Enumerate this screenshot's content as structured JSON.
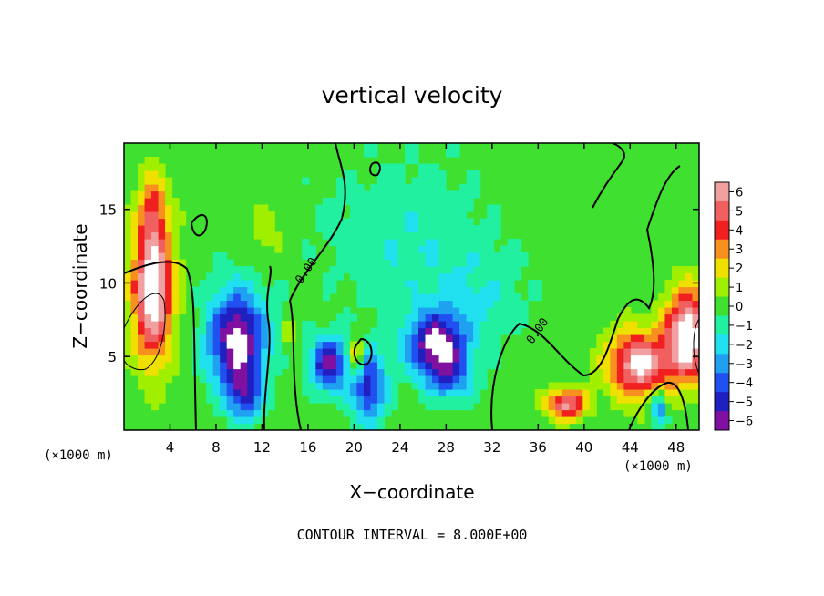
{
  "chart_data": {
    "type": "heatmap",
    "title": "vertical velocity",
    "xlabel": "X−coordinate",
    "ylabel": "Z−coordinate",
    "x_unit_left": "(×1000 m)",
    "x_unit_right": "(×1000 m)",
    "footer": "CONTOUR INTERVAL = 8.000E+00",
    "xlim": [
      0,
      50
    ],
    "ylim": [
      0,
      19.5
    ],
    "x_ticks": [
      {
        "value": 4,
        "label": "4"
      },
      {
        "value": 8,
        "label": "8"
      },
      {
        "value": 12,
        "label": "12"
      },
      {
        "value": 16,
        "label": "16"
      },
      {
        "value": 20,
        "label": "20"
      },
      {
        "value": 24,
        "label": "24"
      },
      {
        "value": 28,
        "label": "28"
      },
      {
        "value": 32,
        "label": "32"
      },
      {
        "value": 36,
        "label": "36"
      },
      {
        "value": 40,
        "label": "40"
      },
      {
        "value": 44,
        "label": "44"
      },
      {
        "value": 48,
        "label": "48"
      }
    ],
    "y_ticks": [
      {
        "value": 5,
        "label": "5"
      },
      {
        "value": 10,
        "label": "10"
      },
      {
        "value": 15,
        "label": "15"
      }
    ],
    "contour_labels": [
      {
        "x": 15.4,
        "y": 9.9,
        "text": "0.00"
      },
      {
        "x": 35.5,
        "y": 5.8,
        "text": "0.00"
      }
    ],
    "colorbar": {
      "levels": [
        {
          "value": 6,
          "label": "6",
          "color": "#f0a0a0"
        },
        {
          "value": 5,
          "label": "5",
          "color": "#f06060"
        },
        {
          "value": 4,
          "label": "4",
          "color": "#f02020"
        },
        {
          "value": 3,
          "label": "3",
          "color": "#f89020"
        },
        {
          "value": 2,
          "label": "2",
          "color": "#f0e000"
        },
        {
          "value": 1,
          "label": "1",
          "color": "#a0ee00"
        },
        {
          "value": 0,
          "label": "0",
          "color": "#40e030"
        },
        {
          "value": -1,
          "label": "−1",
          "color": "#20f0a0"
        },
        {
          "value": -2,
          "label": "−2",
          "color": "#20e0f0"
        },
        {
          "value": -3,
          "label": "−3",
          "color": "#20a0f0"
        },
        {
          "value": -4,
          "label": "−4",
          "color": "#2050f0"
        },
        {
          "value": -5,
          "label": "−5",
          "color": "#2020c0"
        },
        {
          "value": -6,
          "label": "−6",
          "color": "#8010a0"
        }
      ]
    },
    "features": [
      {
        "kind": "updraft",
        "x": 2.5,
        "z": 9.5,
        "sx": 1.7,
        "sz": 4.5,
        "amp": 8
      },
      {
        "kind": "updraft",
        "x": 2.5,
        "z": 15.0,
        "sx": 1.2,
        "sz": 2.5,
        "amp": 3
      },
      {
        "kind": "updraft",
        "x": 49.0,
        "z": 6.5,
        "sx": 1.8,
        "sz": 3.0,
        "amp": 8
      },
      {
        "kind": "updraft",
        "x": 44.8,
        "z": 4.5,
        "sx": 2.6,
        "sz": 2.2,
        "amp": 7
      },
      {
        "kind": "updraft",
        "x": 38.5,
        "z": 1.8,
        "sx": 1.6,
        "sz": 1.0,
        "amp": 6
      },
      {
        "kind": "updraft",
        "x": 20.2,
        "z": 5.0,
        "sx": 0.6,
        "sz": 1.4,
        "amp": 4
      },
      {
        "kind": "updraft",
        "x": 14.2,
        "z": 6.5,
        "sx": 0.5,
        "sz": 1.0,
        "amp": 2
      },
      {
        "kind": "updraft",
        "x": 12.5,
        "z": 13.5,
        "sx": 1.5,
        "sz": 2.0,
        "amp": 1
      },
      {
        "kind": "downdraft",
        "x": 9.8,
        "z": 6.2,
        "sx": 2.5,
        "sz": 3.3,
        "amp": -7
      },
      {
        "kind": "downdraft",
        "x": 10.5,
        "z": 2.5,
        "sx": 1.5,
        "sz": 1.8,
        "amp": -4
      },
      {
        "kind": "downdraft",
        "x": 17.8,
        "z": 4.5,
        "sx": 1.5,
        "sz": 1.8,
        "amp": -6
      },
      {
        "kind": "downdraft",
        "x": 21.2,
        "z": 3.0,
        "sx": 1.5,
        "sz": 2.5,
        "amp": -5
      },
      {
        "kind": "downdraft",
        "x": 27.2,
        "z": 5.8,
        "sx": 2.5,
        "sz": 2.2,
        "amp": -7
      },
      {
        "kind": "downdraft",
        "x": 28.5,
        "z": 3.5,
        "sx": 2.0,
        "sz": 1.5,
        "amp": -3
      },
      {
        "kind": "downdraft",
        "x": 24.5,
        "z": 13.0,
        "sx": 7.0,
        "sz": 5.0,
        "amp": -1.5
      },
      {
        "kind": "downdraft",
        "x": 31.0,
        "z": 9.0,
        "sx": 4.0,
        "sz": 3.0,
        "amp": -1.3
      },
      {
        "kind": "downdraft",
        "x": 46.5,
        "z": 1.6,
        "sx": 0.7,
        "sz": 1.2,
        "amp": -4
      }
    ]
  }
}
